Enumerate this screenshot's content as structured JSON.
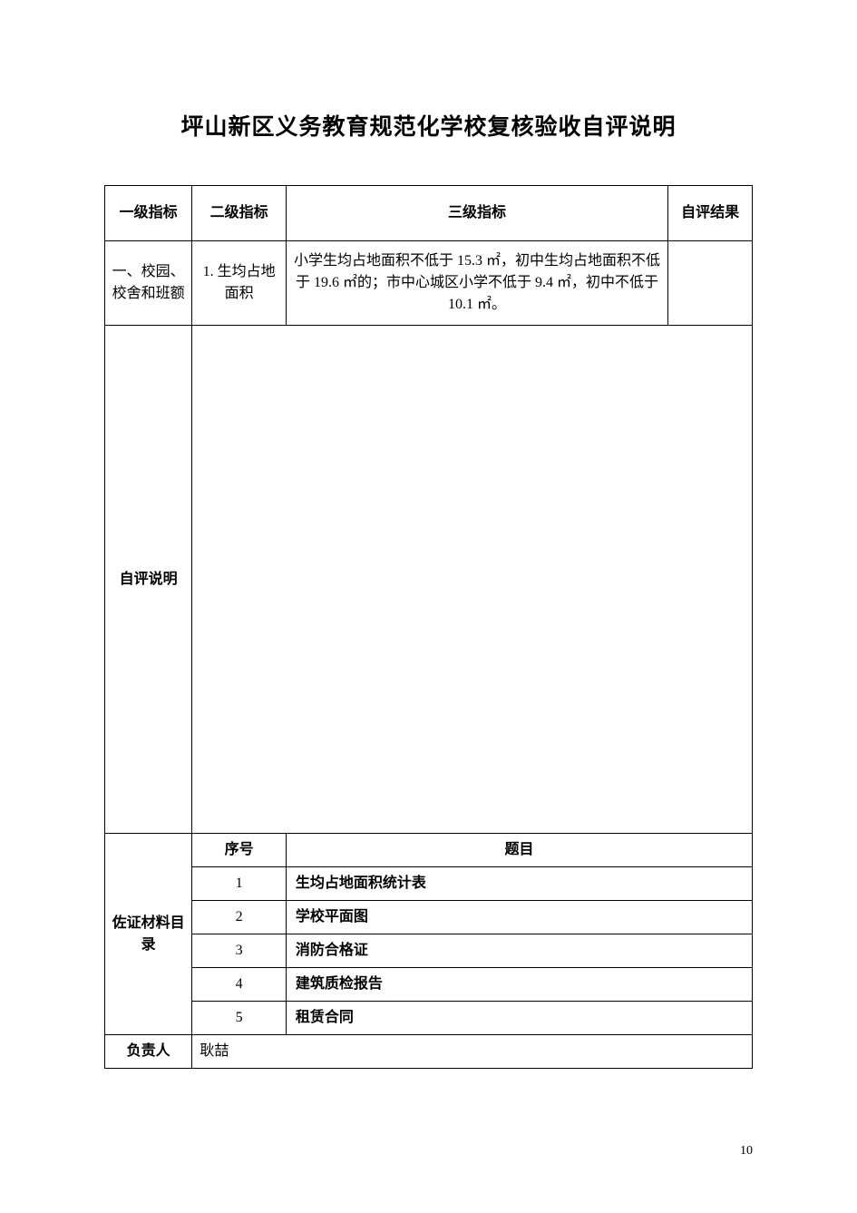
{
  "title": "坪山新区义务教育规范化学校复核验收自评说明",
  "header": {
    "col1": "一级指标",
    "col2": "二级指标",
    "col3": "三级指标",
    "col4": "自评结果"
  },
  "row1": {
    "level1": "一、校园、校舍和班额",
    "level2": "1. 生均占地面积",
    "level3": "小学生均占地面积不低于 15.3 ㎡，初中生均占地面积不低于 19.6 ㎡的；市中心城区小学不低于 9.4 ㎡，初中不低于 10.1 ㎡。",
    "result": ""
  },
  "self_eval_label": "自评说明",
  "materials": {
    "label": "佐证材料目录",
    "seq_header": "序号",
    "title_header": "题目",
    "items": [
      {
        "n": "1",
        "t": "生均占地面积统计表"
      },
      {
        "n": "2",
        "t": "学校平面图"
      },
      {
        "n": "3",
        "t": "消防合格证"
      },
      {
        "n": "4",
        "t": "建筑质检报告"
      },
      {
        "n": "5",
        "t": "租赁合同"
      }
    ]
  },
  "responsible": {
    "label": "负责人",
    "name": "耿喆"
  },
  "page_number": "10"
}
